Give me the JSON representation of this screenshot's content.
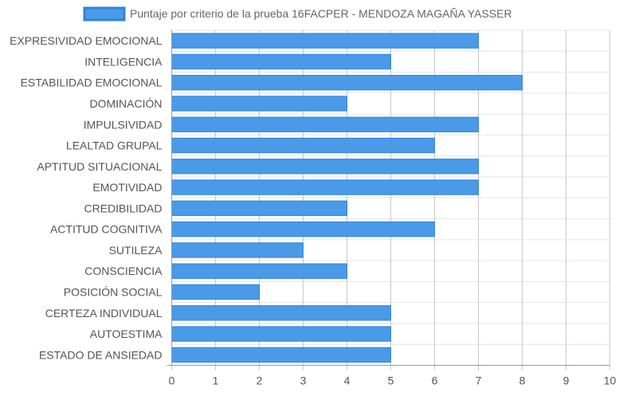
{
  "chart_data": {
    "type": "bar",
    "orientation": "horizontal",
    "legend": {
      "label": "Puntaje por criterio de la prueba 16FACPER - MENDOZA MAGAÑA YASSER",
      "placement": "top-center"
    },
    "categories": [
      "EXPRESIVIDAD EMOCIONAL",
      "INTELIGENCIA",
      "ESTABILIDAD EMOCIONAL",
      "DOMINACIÓN",
      "IMPULSIVIDAD",
      "LEALTAD GRUPAL",
      "APTITUD SITUACIONAL",
      "EMOTIVIDAD",
      "CREDIBILIDAD",
      "ACTITUD COGNITIVA",
      "SUTILEZA",
      "CONSCIENCIA",
      "POSICIÓN SOCIAL",
      "CERTEZA INDIVIDUAL",
      "AUTOESTIMA",
      "ESTADO DE ANSIEDAD"
    ],
    "series": [
      {
        "name": "Puntaje por criterio de la prueba 16FACPER - MENDOZA MAGAÑA YASSER",
        "values": [
          7,
          5,
          8,
          4,
          7,
          6,
          7,
          7,
          4,
          6,
          3,
          4,
          2,
          5,
          5,
          5
        ]
      }
    ],
    "xlim": [
      0,
      10
    ],
    "x_ticks": [
      "0",
      "1",
      "2",
      "3",
      "4",
      "5",
      "6",
      "7",
      "8",
      "9",
      "10"
    ],
    "grid": true,
    "colors": {
      "bar_fill": "#4a9ae8",
      "bar_stroke": "#2f84dc",
      "grid_vertical": "#c8c8c8",
      "grid_horizontal": "#e6e6e6",
      "axis": "#9a9a9a",
      "label_text": "#555555"
    }
  }
}
